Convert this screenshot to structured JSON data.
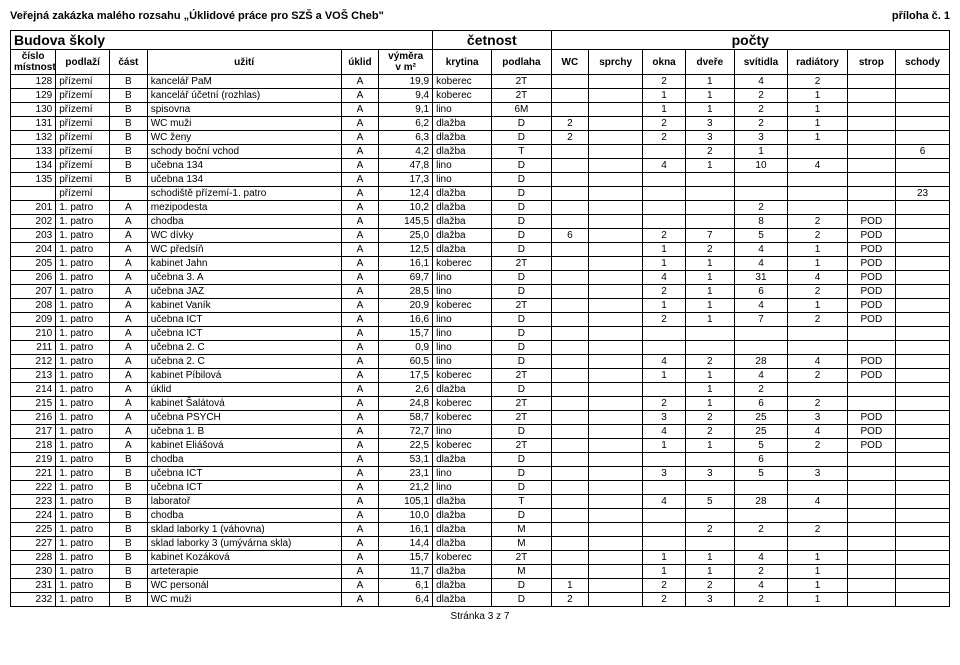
{
  "page": {
    "title_left": "Veřejná zakázka malého rozsahu „Úklidové práce pro SZŠ a VOŠ Cheb\"",
    "title_right": "příloha č. 1",
    "footer": "Stránka 3 z 7"
  },
  "table": {
    "group_headers": {
      "building": "Budova školy",
      "frequency": "četnost",
      "counts": "počty"
    },
    "columns": [
      "číslo\nmístnosti",
      "podlaží",
      "část",
      "užití",
      "úklid",
      "výměra\nv m²",
      "krytina",
      "podlaha",
      "WC",
      "sprchy",
      "okna",
      "dveře",
      "svítidla",
      "radiátory",
      "strop",
      "schody"
    ],
    "rows": [
      [
        "128",
        "přízemí",
        "B",
        "kancelář PaM",
        "A",
        "19,9",
        "koberec",
        "2T",
        "",
        "",
        "2",
        "1",
        "4",
        "2",
        "",
        ""
      ],
      [
        "129",
        "přízemí",
        "B",
        "kancelář účetní (rozhlas)",
        "A",
        "9,4",
        "koberec",
        "2T",
        "",
        "",
        "1",
        "1",
        "2",
        "1",
        "",
        ""
      ],
      [
        "130",
        "přízemí",
        "B",
        "spisovna",
        "A",
        "9,1",
        "lino",
        "6M",
        "",
        "",
        "1",
        "1",
        "2",
        "1",
        "",
        ""
      ],
      [
        "131",
        "přízemí",
        "B",
        "WC muži",
        "A",
        "6,2",
        "dlažba",
        "D",
        "2",
        "",
        "2",
        "3",
        "2",
        "1",
        "",
        ""
      ],
      [
        "132",
        "přízemí",
        "B",
        "WC ženy",
        "A",
        "6,3",
        "dlažba",
        "D",
        "2",
        "",
        "2",
        "3",
        "3",
        "1",
        "",
        ""
      ],
      [
        "133",
        "přízemí",
        "B",
        "schody boční vchod",
        "A",
        "4,2",
        "dlažba",
        "T",
        "",
        "",
        "",
        "2",
        "1",
        "",
        "",
        "6"
      ],
      [
        "134",
        "přízemí",
        "B",
        "učebna 134",
        "A",
        "47,8",
        "lino",
        "D",
        "",
        "",
        "4",
        "1",
        "10",
        "4",
        "",
        ""
      ],
      [
        "135",
        "přízemí",
        "B",
        "učebna 134",
        "A",
        "17,3",
        "lino",
        "D",
        "",
        "",
        "",
        "",
        "",
        "",
        "",
        ""
      ],
      [
        "",
        "přízemí",
        "",
        "schodiště přízemí-1. patro",
        "A",
        "12,4",
        "dlažba",
        "D",
        "",
        "",
        "",
        "",
        "",
        "",
        "",
        "23"
      ],
      [
        "201",
        "1. patro",
        "A",
        "mezipodesta",
        "A",
        "10,2",
        "dlažba",
        "D",
        "",
        "",
        "",
        "",
        "2",
        "",
        "",
        ""
      ],
      [
        "202",
        "1. patro",
        "A",
        "chodba",
        "A",
        "145,5",
        "dlažba",
        "D",
        "",
        "",
        "",
        "",
        "8",
        "2",
        "POD",
        ""
      ],
      [
        "203",
        "1. patro",
        "A",
        "WC dívky",
        "A",
        "25,0",
        "dlažba",
        "D",
        "6",
        "",
        "2",
        "7",
        "5",
        "2",
        "POD",
        ""
      ],
      [
        "204",
        "1. patro",
        "A",
        "WC předsíň",
        "A",
        "12,5",
        "dlažba",
        "D",
        "",
        "",
        "1",
        "2",
        "4",
        "1",
        "POD",
        ""
      ],
      [
        "205",
        "1. patro",
        "A",
        "kabinet Jahn",
        "A",
        "16,1",
        "koberec",
        "2T",
        "",
        "",
        "1",
        "1",
        "4",
        "1",
        "POD",
        ""
      ],
      [
        "206",
        "1. patro",
        "A",
        "učebna 3. A",
        "A",
        "69,7",
        "lino",
        "D",
        "",
        "",
        "4",
        "1",
        "31",
        "4",
        "POD",
        ""
      ],
      [
        "207",
        "1. patro",
        "A",
        "učebna JAZ",
        "A",
        "28,5",
        "lino",
        "D",
        "",
        "",
        "2",
        "1",
        "6",
        "2",
        "POD",
        ""
      ],
      [
        "208",
        "1. patro",
        "A",
        "kabinet Vaník",
        "A",
        "20,9",
        "koberec",
        "2T",
        "",
        "",
        "1",
        "1",
        "4",
        "1",
        "POD",
        ""
      ],
      [
        "209",
        "1. patro",
        "A",
        "učebna ICT",
        "A",
        "16,6",
        "lino",
        "D",
        "",
        "",
        "2",
        "1",
        "7",
        "2",
        "POD",
        ""
      ],
      [
        "210",
        "1. patro",
        "A",
        "učebna ICT",
        "A",
        "15,7",
        "lino",
        "D",
        "",
        "",
        "",
        "",
        "",
        "",
        "",
        ""
      ],
      [
        "211",
        "1. patro",
        "A",
        "učebna 2. C",
        "A",
        "0,9",
        "lino",
        "D",
        "",
        "",
        "",
        "",
        "",
        "",
        "",
        ""
      ],
      [
        "212",
        "1. patro",
        "A",
        "učebna 2. C",
        "A",
        "60,5",
        "lino",
        "D",
        "",
        "",
        "4",
        "2",
        "28",
        "4",
        "POD",
        ""
      ],
      [
        "213",
        "1. patro",
        "A",
        "kabinet Píbilová",
        "A",
        "17,5",
        "koberec",
        "2T",
        "",
        "",
        "1",
        "1",
        "4",
        "2",
        "POD",
        ""
      ],
      [
        "214",
        "1. patro",
        "A",
        "úklid",
        "A",
        "2,6",
        "dlažba",
        "D",
        "",
        "",
        "",
        "1",
        "2",
        "",
        "",
        ""
      ],
      [
        "215",
        "1. patro",
        "A",
        "kabinet Šalátová",
        "A",
        "24,8",
        "koberec",
        "2T",
        "",
        "",
        "2",
        "1",
        "6",
        "2",
        "",
        ""
      ],
      [
        "216",
        "1. patro",
        "A",
        "učebna PSYCH",
        "A",
        "58,7",
        "koberec",
        "2T",
        "",
        "",
        "3",
        "2",
        "25",
        "3",
        "POD",
        ""
      ],
      [
        "217",
        "1. patro",
        "A",
        "učebna 1. B",
        "A",
        "72,7",
        "lino",
        "D",
        "",
        "",
        "4",
        "2",
        "25",
        "4",
        "POD",
        ""
      ],
      [
        "218",
        "1. patro",
        "A",
        "kabinet Eliášová",
        "A",
        "22,5",
        "koberec",
        "2T",
        "",
        "",
        "1",
        "1",
        "5",
        "2",
        "POD",
        ""
      ],
      [
        "219",
        "1. patro",
        "B",
        "chodba",
        "A",
        "53,1",
        "dlažba",
        "D",
        "",
        "",
        "",
        "",
        "6",
        "",
        "",
        ""
      ],
      [
        "221",
        "1. patro",
        "B",
        "učebna ICT",
        "A",
        "23,1",
        "lino",
        "D",
        "",
        "",
        "3",
        "3",
        "5",
        "3",
        "",
        ""
      ],
      [
        "222",
        "1. patro",
        "B",
        "učebna ICT",
        "A",
        "21,2",
        "lino",
        "D",
        "",
        "",
        "",
        "",
        "",
        "",
        "",
        ""
      ],
      [
        "223",
        "1. patro",
        "B",
        "laboratoř",
        "A",
        "105,1",
        "dlažba",
        "T",
        "",
        "",
        "4",
        "5",
        "28",
        "4",
        "",
        ""
      ],
      [
        "224",
        "1. patro",
        "B",
        "chodba",
        "A",
        "10,0",
        "dlažba",
        "D",
        "",
        "",
        "",
        "",
        "",
        "",
        "",
        ""
      ],
      [
        "225",
        "1. patro",
        "B",
        "sklad laborky 1 (váhovna)",
        "A",
        "16,1",
        "dlažba",
        "M",
        "",
        "",
        "",
        "2",
        "2",
        "2",
        "",
        ""
      ],
      [
        "227",
        "1. patro",
        "B",
        "sklad laborky 3 (umývárna skla)",
        "A",
        "14,4",
        "dlažba",
        "M",
        "",
        "",
        "",
        "",
        "",
        "",
        "",
        ""
      ],
      [
        "228",
        "1. patro",
        "B",
        "kabinet Kozáková",
        "A",
        "15,7",
        "koberec",
        "2T",
        "",
        "",
        "1",
        "1",
        "4",
        "1",
        "",
        ""
      ],
      [
        "230",
        "1. patro",
        "B",
        "arteterapie",
        "A",
        "11,7",
        "dlažba",
        "M",
        "",
        "",
        "1",
        "1",
        "2",
        "1",
        "",
        ""
      ],
      [
        "231",
        "1. patro",
        "B",
        "WC personál",
        "A",
        "6,1",
        "dlažba",
        "D",
        "1",
        "",
        "2",
        "2",
        "4",
        "1",
        "",
        ""
      ],
      [
        "232",
        "1. patro",
        "B",
        "WC muži",
        "A",
        "6,4",
        "dlažba",
        "D",
        "2",
        "",
        "2",
        "3",
        "2",
        "1",
        "",
        ""
      ]
    ],
    "numeric_cols": [
      0,
      5
    ],
    "center_cols": [
      2,
      4,
      7,
      8,
      9,
      10,
      11,
      12,
      13,
      14,
      15
    ]
  }
}
